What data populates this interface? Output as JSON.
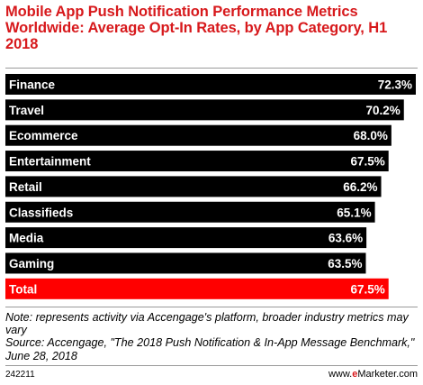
{
  "header": {
    "title": "Mobile App Push Notification Performance Metrics Worldwide: Average Opt-In Rates, by App Category, H1 2018"
  },
  "chart_data": {
    "type": "bar",
    "orientation": "horizontal",
    "categories": [
      "Finance",
      "Travel",
      "Ecommerce",
      "Entertainment",
      "Retail",
      "Classifieds",
      "Media",
      "Gaming",
      "Total"
    ],
    "values": [
      72.3,
      70.2,
      68.0,
      67.5,
      66.2,
      65.1,
      63.6,
      63.5,
      67.5
    ],
    "value_labels": [
      "72.3%",
      "70.2%",
      "68.0%",
      "67.5%",
      "66.2%",
      "65.1%",
      "63.6%",
      "63.5%",
      "67.5%"
    ],
    "title": "Mobile App Push Notification Performance Metrics Worldwide: Average Opt-In Rates, by App Category, H1 2018",
    "xlabel": "",
    "ylabel": "",
    "grid": false,
    "colors": {
      "bar": "#000000",
      "highlight": "#ff0000",
      "highlight_category": "Total"
    }
  },
  "notes": {
    "note": "Note: represents activity via Accengage's platform, broader industry metrics may vary",
    "source": "Source: Accengage, \"The 2018 Push Notification & In-App Message Benchmark,\" June 28, 2018"
  },
  "footer": {
    "chart_id": "242211",
    "brand_prefix": "www.",
    "brand_e": "e",
    "brand_rest": "Marketer.com"
  },
  "colors": {
    "title": "#d7191c",
    "divider": "#9a9a9a"
  }
}
